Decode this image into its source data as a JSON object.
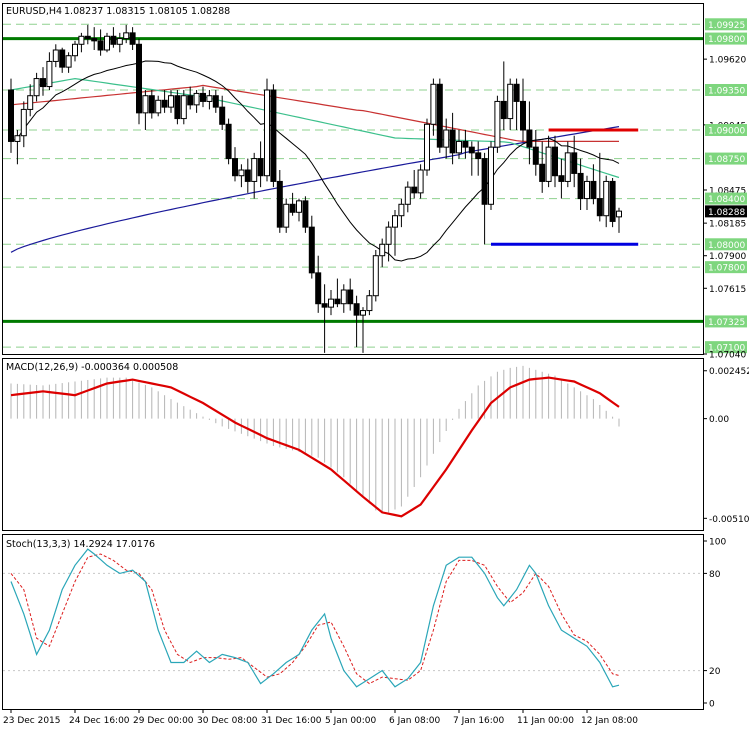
{
  "chart_data": {
    "type": "candlestick",
    "symbol_header": "EURUSD,H4",
    "ohlc_header": "1.08237 1.08315 1.08105 1.08288",
    "price_axis": {
      "range": [
        1.0704,
        1.0998
      ],
      "tick_labels": [
        {
          "value": 1.09925,
          "text": "1.09925",
          "highlight": true
        },
        {
          "value": 1.098,
          "text": "1.09800",
          "highlight": true
        },
        {
          "value": 1.0962,
          "text": "1.09620",
          "highlight": false
        },
        {
          "value": 1.0935,
          "text": "1.09350",
          "highlight": true
        },
        {
          "value": 1.09045,
          "text": "1.09045",
          "highlight": false
        },
        {
          "value": 1.09,
          "text": "1.09000",
          "highlight": true
        },
        {
          "value": 1.0875,
          "text": "1.08750",
          "highlight": true
        },
        {
          "value": 1.08475,
          "text": "1.08475",
          "highlight": false
        },
        {
          "value": 1.08185,
          "text": "1.08185",
          "highlight": false
        },
        {
          "value": 1.08,
          "text": "1.08000",
          "highlight": true
        },
        {
          "value": 1.079,
          "text": "1.07900",
          "highlight": false
        },
        {
          "value": 1.078,
          "text": "1.07800",
          "highlight": true
        },
        {
          "value": 1.07615,
          "text": "1.07615",
          "highlight": false
        },
        {
          "value": 1.07325,
          "text": "1.07325",
          "highlight": true
        },
        {
          "value": 1.071,
          "text": "1.07100",
          "highlight": true
        },
        {
          "value": 1.0704,
          "text": "1.07040",
          "highlight": false
        }
      ],
      "current_price": {
        "value": 1.08288,
        "text": "1.08288"
      },
      "hidden_level": {
        "value": 1.084,
        "text": "1.08400"
      }
    },
    "support_resistance": {
      "major_green": [
        1.098,
        1.07325
      ],
      "dashed_green": [
        1.09925,
        1.0935,
        1.09,
        1.0875,
        1.084,
        1.08,
        1.078,
        1.071
      ],
      "red_resistance": {
        "value": 1.09,
        "from_index": 84,
        "to_index": 98
      },
      "blue_support": {
        "value": 1.08,
        "from_index": 75,
        "to_index": 98
      }
    },
    "x_axis": {
      "labels": [
        {
          "index": 0,
          "text": "23 Dec 2015"
        },
        {
          "index": 10,
          "text": "24 Dec 16:00"
        },
        {
          "index": 20,
          "text": "29 Dec 00:00"
        },
        {
          "index": 30,
          "text": "30 Dec 08:00"
        },
        {
          "index": 40,
          "text": "31 Dec 16:00"
        },
        {
          "index": 50,
          "text": "5 Jan 00:00"
        },
        {
          "index": 60,
          "text": "6 Jan 08:00"
        },
        {
          "index": 70,
          "text": "7 Jan 16:00"
        },
        {
          "index": 80,
          "text": "11 Jan 00:00"
        },
        {
          "index": 90,
          "text": "12 Jan 08:00"
        }
      ]
    },
    "candles": [
      [
        1.0935,
        1.0945,
        1.088,
        1.089
      ],
      [
        1.089,
        1.09,
        1.087,
        1.0895
      ],
      [
        1.0895,
        1.0925,
        1.0885,
        1.0918
      ],
      [
        1.0918,
        1.094,
        1.0912,
        1.093
      ],
      [
        1.093,
        1.095,
        1.0925,
        1.0945
      ],
      [
        1.0945,
        1.0955,
        1.093,
        1.0938
      ],
      [
        1.0938,
        1.0968,
        1.0935,
        1.096
      ],
      [
        1.096,
        1.0975,
        1.0955,
        1.097
      ],
      [
        1.097,
        1.0972,
        1.095,
        1.0955
      ],
      [
        1.0955,
        1.0968,
        1.095,
        1.0965
      ],
      [
        1.0965,
        1.0978,
        1.096,
        1.0975
      ],
      [
        1.0975,
        1.0985,
        1.0968,
        1.0982
      ],
      [
        1.0982,
        1.0992,
        1.0975,
        1.098
      ],
      [
        1.098,
        1.099,
        1.097,
        1.0978
      ],
      [
        1.0978,
        1.0988,
        1.0965,
        1.097
      ],
      [
        1.097,
        1.0985,
        1.0968,
        1.0982
      ],
      [
        1.0982,
        1.099,
        1.0972,
        1.0975
      ],
      [
        1.0975,
        1.0985,
        1.0968,
        1.098
      ],
      [
        1.098,
        1.0992,
        1.0976,
        1.0985
      ],
      [
        1.0985,
        1.099,
        1.097,
        1.0975
      ],
      [
        1.0975,
        1.098,
        1.0905,
        1.0915
      ],
      [
        1.0915,
        1.0935,
        1.09,
        1.093
      ],
      [
        1.093,
        1.0935,
        1.091,
        1.0915
      ],
      [
        1.0915,
        1.093,
        1.0912,
        1.0926
      ],
      [
        1.0926,
        1.0935,
        1.0915,
        1.092
      ],
      [
        1.092,
        1.0935,
        1.0915,
        1.093
      ],
      [
        1.093,
        1.0935,
        1.0905,
        1.091
      ],
      [
        1.091,
        1.0935,
        1.0905,
        1.093
      ],
      [
        1.093,
        1.0938,
        1.0918,
        1.0922
      ],
      [
        1.0922,
        1.0935,
        1.0915,
        1.0932
      ],
      [
        1.0932,
        1.0938,
        1.092,
        1.0925
      ],
      [
        1.0925,
        1.0935,
        1.0918,
        1.093
      ],
      [
        1.093,
        1.0935,
        1.0915,
        1.092
      ],
      [
        1.092,
        1.093,
        1.09,
        1.0905
      ],
      [
        1.0905,
        1.091,
        1.087,
        1.0875
      ],
      [
        1.0875,
        1.0885,
        1.0855,
        1.086
      ],
      [
        1.086,
        1.087,
        1.085,
        1.0865
      ],
      [
        1.0865,
        1.0875,
        1.0845,
        1.0855
      ],
      [
        1.0855,
        1.088,
        1.084,
        1.0875
      ],
      [
        1.0875,
        1.089,
        1.085,
        1.086
      ],
      [
        1.086,
        1.0945,
        1.0855,
        1.0935
      ],
      [
        1.0935,
        1.094,
        1.085,
        1.0855
      ],
      [
        1.0855,
        1.0865,
        1.081,
        1.0815
      ],
      [
        1.0815,
        1.084,
        1.081,
        1.0835
      ],
      [
        1.0835,
        1.0845,
        1.0825,
        1.0828
      ],
      [
        1.0828,
        1.084,
        1.082,
        1.0838
      ],
      [
        1.0838,
        1.0842,
        1.081,
        1.0815
      ],
      [
        1.0815,
        1.0825,
        1.077,
        1.0775
      ],
      [
        1.0775,
        1.079,
        1.074,
        1.0748
      ],
      [
        1.0748,
        1.0765,
        1.0705,
        1.0745
      ],
      [
        1.0745,
        1.076,
        1.0738,
        1.0752
      ],
      [
        1.0752,
        1.077,
        1.0745,
        1.0748
      ],
      [
        1.0748,
        1.0765,
        1.074,
        1.076
      ],
      [
        1.076,
        1.077,
        1.0742,
        1.0748
      ],
      [
        1.0748,
        1.0755,
        1.071,
        1.0738
      ],
      [
        1.0738,
        1.0745,
        1.0705,
        1.0742
      ],
      [
        1.0742,
        1.076,
        1.0738,
        1.0755
      ],
      [
        1.0755,
        1.0795,
        1.075,
        1.079
      ],
      [
        1.079,
        1.0805,
        1.078,
        1.08
      ],
      [
        1.08,
        1.082,
        1.0785,
        1.0815
      ],
      [
        1.0815,
        1.083,
        1.079,
        1.0825
      ],
      [
        1.0825,
        1.084,
        1.0815,
        1.0835
      ],
      [
        1.0835,
        1.0855,
        1.0828,
        1.085
      ],
      [
        1.085,
        1.0865,
        1.084,
        1.0845
      ],
      [
        1.0845,
        1.087,
        1.084,
        1.0865
      ],
      [
        1.0865,
        1.091,
        1.086,
        1.0905
      ],
      [
        1.0905,
        1.0945,
        1.0895,
        1.094
      ],
      [
        1.094,
        1.0945,
        1.088,
        1.0885
      ],
      [
        1.0885,
        1.091,
        1.0875,
        1.09
      ],
      [
        1.09,
        1.0915,
        1.087,
        1.088
      ],
      [
        1.088,
        1.09,
        1.0875,
        1.089
      ],
      [
        1.089,
        1.09,
        1.0875,
        1.0885
      ],
      [
        1.0885,
        1.089,
        1.086,
        1.088
      ],
      [
        1.088,
        1.089,
        1.086,
        1.0875
      ],
      [
        1.0875,
        1.088,
        1.08,
        1.0835
      ],
      [
        1.0835,
        1.089,
        1.083,
        1.0885
      ],
      [
        1.0885,
        1.093,
        1.088,
        1.0925
      ],
      [
        1.0925,
        1.096,
        1.09,
        1.091
      ],
      [
        1.091,
        1.0945,
        1.09,
        1.094
      ],
      [
        1.094,
        1.0945,
        1.09,
        1.0925
      ],
      [
        1.0925,
        1.0945,
        1.089,
        1.09
      ],
      [
        1.09,
        1.0925,
        1.087,
        1.0885
      ],
      [
        1.0885,
        1.09,
        1.086,
        1.087
      ],
      [
        1.087,
        1.089,
        1.0845,
        1.0855
      ],
      [
        1.0855,
        1.0895,
        1.085,
        1.0885
      ],
      [
        1.0885,
        1.0895,
        1.085,
        1.086
      ],
      [
        1.086,
        1.0875,
        1.084,
        1.0855
      ],
      [
        1.0855,
        1.089,
        1.085,
        1.088
      ],
      [
        1.088,
        1.0895,
        1.085,
        1.0862
      ],
      [
        1.0862,
        1.0875,
        1.083,
        1.084
      ],
      [
        1.084,
        1.086,
        1.083,
        1.0855
      ],
      [
        1.0855,
        1.087,
        1.0835,
        1.084
      ],
      [
        1.084,
        1.088,
        1.082,
        1.0825
      ],
      [
        1.0825,
        1.086,
        1.0815,
        1.0855
      ],
      [
        1.0855,
        1.0858,
        1.0815,
        1.082
      ],
      [
        1.0824,
        1.0832,
        1.081,
        1.0829
      ]
    ],
    "macd": {
      "header": "MACD(12,26,9) -0.000364 0.000508",
      "range": [
        -0.0056,
        0.0029
      ],
      "tick_labels": [
        {
          "value": 0.002452,
          "text": "0.002452"
        },
        {
          "value": 0.0,
          "text": "0.00"
        },
        {
          "value": -0.005105,
          "text": "-0.005105"
        }
      ],
      "signal_anchors": [
        [
          0,
          0.0012
        ],
        [
          5,
          0.0014
        ],
        [
          10,
          0.0012
        ],
        [
          15,
          0.0018
        ],
        [
          19,
          0.002
        ],
        [
          25,
          0.0016
        ],
        [
          30,
          0.0008
        ],
        [
          35,
          -0.0002
        ],
        [
          40,
          -0.001
        ],
        [
          45,
          -0.0016
        ],
        [
          50,
          -0.0026
        ],
        [
          55,
          -0.004
        ],
        [
          58,
          -0.0048
        ],
        [
          61,
          -0.005
        ],
        [
          64,
          -0.0044
        ],
        [
          68,
          -0.0026
        ],
        [
          72,
          -0.0006
        ],
        [
          75,
          0.0008
        ],
        [
          78,
          0.0016
        ],
        [
          81,
          0.002
        ],
        [
          84,
          0.0021
        ],
        [
          88,
          0.0019
        ],
        [
          92,
          0.0013
        ],
        [
          95,
          0.0006
        ]
      ],
      "histogram_anchors": [
        [
          0,
          0.0018
        ],
        [
          5,
          0.0017
        ],
        [
          10,
          0.0019
        ],
        [
          15,
          0.0021
        ],
        [
          18,
          0.0021
        ],
        [
          22,
          0.0016
        ],
        [
          25,
          0.001
        ],
        [
          30,
          0.0001
        ],
        [
          33,
          -0.0004
        ],
        [
          37,
          -0.0009
        ],
        [
          41,
          -0.0014
        ],
        [
          45,
          -0.0017
        ],
        [
          48,
          -0.002
        ],
        [
          52,
          -0.003
        ],
        [
          55,
          -0.004
        ],
        [
          57,
          -0.0047
        ],
        [
          59,
          -0.0048
        ],
        [
          61,
          -0.0045
        ],
        [
          64,
          -0.003
        ],
        [
          67,
          -0.0012
        ],
        [
          70,
          0.0005
        ],
        [
          73,
          0.0017
        ],
        [
          76,
          0.0024
        ],
        [
          78,
          0.0026
        ],
        [
          80,
          0.0027
        ],
        [
          82,
          0.0025
        ],
        [
          85,
          0.0022
        ],
        [
          88,
          0.0016
        ],
        [
          91,
          0.001
        ],
        [
          94,
          0.0001
        ],
        [
          95,
          -0.0004
        ]
      ]
    },
    "stoch": {
      "header": "Stoch(13,3,3) 14.2924 17.0176",
      "range": [
        0,
        100
      ],
      "tick_labels": [
        {
          "value": 100,
          "text": "100"
        },
        {
          "value": 80,
          "text": "80"
        },
        {
          "value": 20,
          "text": "20"
        },
        {
          "value": 0,
          "text": "0"
        }
      ],
      "main_anchors": [
        [
          0,
          75
        ],
        [
          2,
          55
        ],
        [
          4,
          30
        ],
        [
          6,
          45
        ],
        [
          8,
          70
        ],
        [
          10,
          85
        ],
        [
          12,
          95
        ],
        [
          13,
          92
        ],
        [
          15,
          85
        ],
        [
          17,
          80
        ],
        [
          19,
          82
        ],
        [
          21,
          75
        ],
        [
          23,
          45
        ],
        [
          25,
          25
        ],
        [
          27,
          25
        ],
        [
          29,
          32
        ],
        [
          31,
          25
        ],
        [
          33,
          30
        ],
        [
          35,
          28
        ],
        [
          37,
          25
        ],
        [
          39,
          12
        ],
        [
          41,
          18
        ],
        [
          43,
          25
        ],
        [
          45,
          30
        ],
        [
          47,
          45
        ],
        [
          49,
          55
        ],
        [
          50,
          40
        ],
        [
          52,
          20
        ],
        [
          54,
          10
        ],
        [
          56,
          15
        ],
        [
          58,
          20
        ],
        [
          60,
          10
        ],
        [
          62,
          15
        ],
        [
          64,
          25
        ],
        [
          66,
          60
        ],
        [
          68,
          85
        ],
        [
          70,
          90
        ],
        [
          72,
          90
        ],
        [
          74,
          80
        ],
        [
          76,
          65
        ],
        [
          77,
          60
        ],
        [
          79,
          70
        ],
        [
          81,
          85
        ],
        [
          82,
          80
        ],
        [
          84,
          60
        ],
        [
          86,
          45
        ],
        [
          88,
          40
        ],
        [
          90,
          35
        ],
        [
          92,
          25
        ],
        [
          94,
          10
        ],
        [
          95,
          11
        ]
      ],
      "signal_anchors": [
        [
          0,
          80
        ],
        [
          2,
          70
        ],
        [
          4,
          40
        ],
        [
          6,
          35
        ],
        [
          8,
          55
        ],
        [
          10,
          75
        ],
        [
          12,
          90
        ],
        [
          14,
          92
        ],
        [
          16,
          88
        ],
        [
          18,
          82
        ],
        [
          20,
          80
        ],
        [
          22,
          70
        ],
        [
          24,
          45
        ],
        [
          26,
          30
        ],
        [
          28,
          25
        ],
        [
          30,
          28
        ],
        [
          32,
          28
        ],
        [
          34,
          27
        ],
        [
          36,
          28
        ],
        [
          38,
          22
        ],
        [
          40,
          16
        ],
        [
          42,
          18
        ],
        [
          44,
          25
        ],
        [
          46,
          35
        ],
        [
          48,
          48
        ],
        [
          50,
          50
        ],
        [
          52,
          35
        ],
        [
          54,
          18
        ],
        [
          56,
          12
        ],
        [
          58,
          16
        ],
        [
          60,
          15
        ],
        [
          62,
          14
        ],
        [
          64,
          20
        ],
        [
          66,
          45
        ],
        [
          68,
          75
        ],
        [
          70,
          88
        ],
        [
          72,
          88
        ],
        [
          74,
          85
        ],
        [
          76,
          72
        ],
        [
          78,
          62
        ],
        [
          80,
          68
        ],
        [
          82,
          80
        ],
        [
          84,
          72
        ],
        [
          86,
          55
        ],
        [
          88,
          42
        ],
        [
          90,
          38
        ],
        [
          92,
          30
        ],
        [
          94,
          18
        ],
        [
          95,
          17
        ]
      ]
    }
  }
}
